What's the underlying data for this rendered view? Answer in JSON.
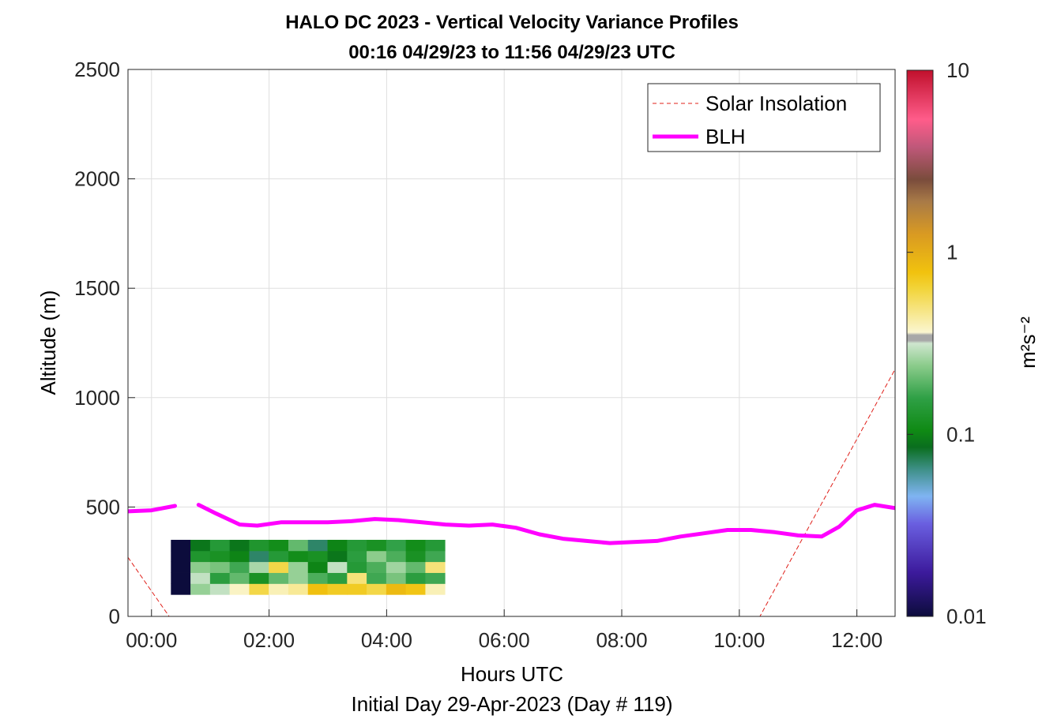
{
  "chart_data": {
    "type": "heatmap",
    "title": "HALO DC 2023 - Vertical Velocity Variance Profiles",
    "subtitle": "00:16 04/29/23 to 11:56 04/29/23  UTC",
    "xlabel": "Hours UTC",
    "ylabel": "Altitude (m)",
    "footer": "Initial Day 29-Apr-2023 (Day # 119)",
    "x_unit": "hours UTC",
    "xlim": [
      -0.4,
      12.65
    ],
    "ylim": [
      0,
      2500
    ],
    "x_ticks": [
      {
        "v": 0,
        "label": "00:00"
      },
      {
        "v": 2,
        "label": "02:00"
      },
      {
        "v": 4,
        "label": "04:00"
      },
      {
        "v": 6,
        "label": "06:00"
      },
      {
        "v": 8,
        "label": "08:00"
      },
      {
        "v": 10,
        "label": "10:00"
      },
      {
        "v": 12,
        "label": "12:00"
      }
    ],
    "y_ticks": [
      {
        "v": 0,
        "label": "0"
      },
      {
        "v": 500,
        "label": "500"
      },
      {
        "v": 1000,
        "label": "1000"
      },
      {
        "v": 1500,
        "label": "1500"
      },
      {
        "v": 2000,
        "label": "2000"
      },
      {
        "v": 2500,
        "label": "2500"
      }
    ],
    "grid": true,
    "legend_position": "top-right",
    "colorbar": {
      "label": "m²s⁻²",
      "scale": "log",
      "range": [
        0.01,
        10
      ],
      "ticks": [
        {
          "v": 0.01,
          "label": "0.01"
        },
        {
          "v": 0.1,
          "label": "0.1"
        },
        {
          "v": 1,
          "label": "1"
        },
        {
          "v": 10,
          "label": "10"
        }
      ]
    },
    "heatmap": {
      "x_start": 0.33,
      "dx": 0.333,
      "y_start": 100,
      "dy": 50,
      "values_m2s2": [
        [
          0.01,
          0.25,
          0.3,
          0.38,
          0.6,
          0.4,
          0.45,
          0.8,
          0.7,
          0.7,
          0.6,
          0.85,
          0.75,
          0.4
        ],
        [
          0.01,
          0.3,
          0.15,
          0.2,
          0.12,
          0.2,
          0.25,
          0.18,
          0.15,
          0.5,
          0.17,
          0.22,
          0.15,
          0.17
        ],
        [
          0.01,
          0.24,
          0.22,
          0.17,
          0.27,
          0.6,
          0.25,
          0.1,
          0.3,
          0.14,
          0.18,
          0.26,
          0.2,
          0.5
        ],
        [
          0.01,
          0.13,
          0.12,
          0.1,
          0.07,
          0.14,
          0.11,
          0.12,
          0.09,
          0.15,
          0.24,
          0.18,
          0.12,
          0.17
        ],
        [
          0.01,
          0.09,
          0.14,
          0.09,
          0.13,
          0.11,
          0.2,
          0.07,
          0.1,
          0.14,
          0.12,
          0.16,
          0.11,
          0.14
        ]
      ]
    },
    "series": [
      {
        "name": "Solar Insolation",
        "style": "dashed",
        "color": "#e0201a",
        "x": [
          -0.4,
          0.3,
          10.35,
          12.65
        ],
        "y": [
          270,
          0,
          0,
          1130
        ]
      },
      {
        "name": "BLH",
        "style": "solid",
        "color": "#ff00ff",
        "x": [
          -0.4,
          0.0,
          0.4,
          0.5,
          0.8,
          1.1,
          1.5,
          1.8,
          2.2,
          2.6,
          3.0,
          3.4,
          3.8,
          4.2,
          4.6,
          5.0,
          5.4,
          5.8,
          6.2,
          6.6,
          7.0,
          7.4,
          7.8,
          8.2,
          8.6,
          9.0,
          9.4,
          9.8,
          10.2,
          10.6,
          11.0,
          11.4,
          11.7,
          12.0,
          12.3,
          12.65
        ],
        "y": [
          480,
          485,
          505,
          null,
          510,
          470,
          420,
          415,
          430,
          430,
          430,
          435,
          445,
          440,
          430,
          420,
          415,
          420,
          405,
          375,
          355,
          345,
          335,
          340,
          345,
          365,
          380,
          395,
          395,
          385,
          370,
          365,
          410,
          485,
          510,
          495
        ]
      }
    ]
  },
  "colors": {
    "blh": "#ff00ff",
    "insolation": "#e0201a",
    "axis": "#262626",
    "grid": "#dfdfdf"
  }
}
